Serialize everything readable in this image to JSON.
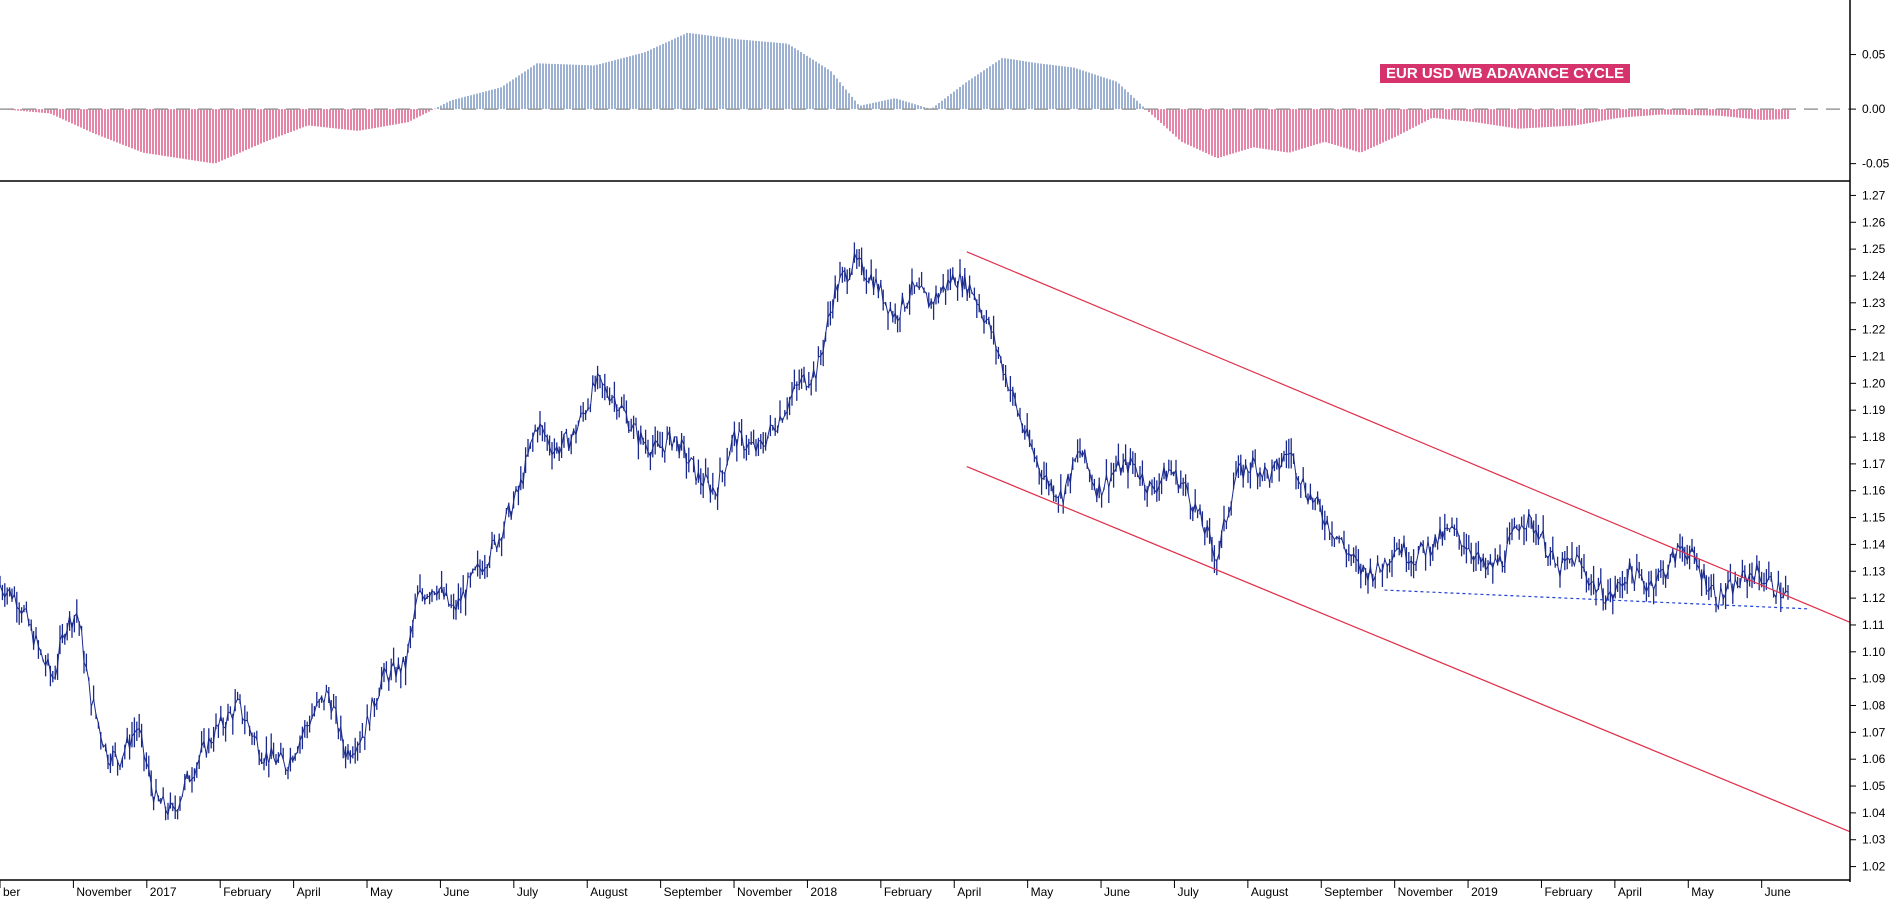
{
  "chart_data": [
    {
      "type": "bar",
      "title": "EUR USD WB ADAVANCE CYCLE",
      "ylim": [
        -0.065,
        0.1
      ],
      "yticks": [
        "0.05",
        "0.00",
        "-0.05"
      ],
      "positive_color": "#5b7fb3",
      "negative_color": "#d6336c",
      "zero_line_color": "#999999",
      "cycle_points": [
        {
          "month": 0,
          "value": 0.0
        },
        {
          "month": 0.7,
          "value": -0.004
        },
        {
          "month": 1.3,
          "value": -0.022
        },
        {
          "month": 2.0,
          "value": -0.04
        },
        {
          "month": 3.0,
          "value": -0.05
        },
        {
          "month": 3.7,
          "value": -0.03
        },
        {
          "month": 4.3,
          "value": -0.015
        },
        {
          "month": 5.0,
          "value": -0.02
        },
        {
          "month": 5.7,
          "value": -0.012
        },
        {
          "month": 6.3,
          "value": 0.008
        },
        {
          "month": 7.0,
          "value": 0.02
        },
        {
          "month": 7.5,
          "value": 0.042
        },
        {
          "month": 8.3,
          "value": 0.04
        },
        {
          "month": 9.0,
          "value": 0.052
        },
        {
          "month": 9.6,
          "value": 0.07
        },
        {
          "month": 10.3,
          "value": 0.064
        },
        {
          "month": 11.0,
          "value": 0.06
        },
        {
          "month": 11.6,
          "value": 0.035
        },
        {
          "month": 12.0,
          "value": 0.003
        },
        {
          "month": 12.5,
          "value": 0.01
        },
        {
          "month": 13.0,
          "value": 0.0
        },
        {
          "month": 13.5,
          "value": 0.025
        },
        {
          "month": 14.0,
          "value": 0.047
        },
        {
          "month": 14.5,
          "value": 0.042
        },
        {
          "month": 15.0,
          "value": 0.038
        },
        {
          "month": 15.6,
          "value": 0.025
        },
        {
          "month": 16.0,
          "value": 0.0
        },
        {
          "month": 16.5,
          "value": -0.03
        },
        {
          "month": 17.0,
          "value": -0.045
        },
        {
          "month": 17.5,
          "value": -0.035
        },
        {
          "month": 18.0,
          "value": -0.04
        },
        {
          "month": 18.5,
          "value": -0.03
        },
        {
          "month": 19.0,
          "value": -0.04
        },
        {
          "month": 19.5,
          "value": -0.025
        },
        {
          "month": 20.0,
          "value": -0.008
        },
        {
          "month": 20.6,
          "value": -0.012
        },
        {
          "month": 21.2,
          "value": -0.018
        },
        {
          "month": 22.0,
          "value": -0.015
        },
        {
          "month": 22.6,
          "value": -0.008
        },
        {
          "month": 23.2,
          "value": -0.005
        },
        {
          "month": 24.0,
          "value": -0.006
        },
        {
          "month": 24.6,
          "value": -0.01
        },
        {
          "month": 25.0,
          "value": -0.009
        }
      ]
    },
    {
      "type": "line",
      "ylim": [
        1.015,
        1.275
      ],
      "yticks": [
        "1.27",
        "1.26",
        "1.25",
        "1.24",
        "1.23",
        "1.22",
        "1.21",
        "1.20",
        "1.19",
        "1.18",
        "1.17",
        "1.16",
        "1.15",
        "1.14",
        "1.13",
        "1.12",
        "1.11",
        "1.10",
        "1.09",
        "1.08",
        "1.07",
        "1.06",
        "1.05",
        "1.04",
        "1.03",
        "1.02"
      ],
      "months": [
        "ber",
        "November",
        "2017",
        "February",
        "April",
        "May",
        "June",
        "July",
        "August",
        "September",
        "November",
        "2018",
        "February",
        "April",
        "May",
        "June",
        "July",
        "August",
        "September",
        "November",
        "2019",
        "February",
        "April",
        "May",
        "June"
      ],
      "series_color": "#1a2a8c",
      "channel_color": "#e0304a",
      "support_color": "#2040d0",
      "price_points": [
        {
          "month": 0.0,
          "value": 1.125
        },
        {
          "month": 0.3,
          "value": 1.12
        },
        {
          "month": 0.7,
          "value": 1.098
        },
        {
          "month": 0.9,
          "value": 1.09
        },
        {
          "month": 1.1,
          "value": 1.11
        },
        {
          "month": 1.3,
          "value": 1.115
        },
        {
          "month": 1.5,
          "value": 1.085
        },
        {
          "month": 1.8,
          "value": 1.062
        },
        {
          "month": 2.0,
          "value": 1.06
        },
        {
          "month": 2.3,
          "value": 1.072
        },
        {
          "month": 2.6,
          "value": 1.045
        },
        {
          "month": 2.9,
          "value": 1.04
        },
        {
          "month": 3.2,
          "value": 1.055
        },
        {
          "month": 3.6,
          "value": 1.07
        },
        {
          "month": 4.0,
          "value": 1.08
        },
        {
          "month": 4.4,
          "value": 1.062
        },
        {
          "month": 4.8,
          "value": 1.058
        },
        {
          "month": 5.2,
          "value": 1.075
        },
        {
          "month": 5.5,
          "value": 1.085
        },
        {
          "month": 5.8,
          "value": 1.062
        },
        {
          "month": 6.1,
          "value": 1.07
        },
        {
          "month": 6.4,
          "value": 1.09
        },
        {
          "month": 6.8,
          "value": 1.095
        },
        {
          "month": 7.0,
          "value": 1.12
        },
        {
          "month": 7.3,
          "value": 1.125
        },
        {
          "month": 7.6,
          "value": 1.115
        },
        {
          "month": 8.0,
          "value": 1.13
        },
        {
          "month": 8.3,
          "value": 1.14
        },
        {
          "month": 8.7,
          "value": 1.16
        },
        {
          "month": 9.0,
          "value": 1.185
        },
        {
          "month": 9.3,
          "value": 1.175
        },
        {
          "month": 9.6,
          "value": 1.18
        },
        {
          "month": 10.0,
          "value": 1.2
        },
        {
          "month": 10.3,
          "value": 1.195
        },
        {
          "month": 10.7,
          "value": 1.18
        },
        {
          "month": 11.0,
          "value": 1.175
        },
        {
          "month": 11.3,
          "value": 1.18
        },
        {
          "month": 11.7,
          "value": 1.165
        },
        {
          "month": 12.0,
          "value": 1.16
        },
        {
          "month": 12.3,
          "value": 1.18
        },
        {
          "month": 12.7,
          "value": 1.175
        },
        {
          "month": 13.0,
          "value": 1.185
        },
        {
          "month": 13.4,
          "value": 1.2
        },
        {
          "month": 13.7,
          "value": 1.205
        },
        {
          "month": 14.0,
          "value": 1.235
        },
        {
          "month": 14.3,
          "value": 1.245
        },
        {
          "month": 14.6,
          "value": 1.24
        },
        {
          "month": 15.0,
          "value": 1.225
        },
        {
          "month": 15.3,
          "value": 1.235
        },
        {
          "month": 15.6,
          "value": 1.23
        },
        {
          "month": 16.0,
          "value": 1.24
        },
        {
          "month": 16.3,
          "value": 1.235
        },
        {
          "month": 16.6,
          "value": 1.22
        },
        {
          "month": 16.9,
          "value": 1.2
        },
        {
          "month": 17.2,
          "value": 1.18
        },
        {
          "month": 17.5,
          "value": 1.165
        },
        {
          "month": 17.8,
          "value": 1.158
        },
        {
          "month": 18.1,
          "value": 1.175
        },
        {
          "month": 18.4,
          "value": 1.16
        },
        {
          "month": 18.7,
          "value": 1.168
        },
        {
          "month": 19.0,
          "value": 1.17
        },
        {
          "month": 19.3,
          "value": 1.16
        },
        {
          "month": 19.6,
          "value": 1.168
        },
        {
          "month": 19.9,
          "value": 1.16
        },
        {
          "month": 20.2,
          "value": 1.145
        },
        {
          "month": 20.4,
          "value": 1.135
        },
        {
          "month": 20.7,
          "value": 1.165
        },
        {
          "month": 21.0,
          "value": 1.17
        },
        {
          "month": 21.3,
          "value": 1.165
        },
        {
          "month": 21.6,
          "value": 1.175
        },
        {
          "month": 21.9,
          "value": 1.16
        },
        {
          "month": 22.2,
          "value": 1.15
        },
        {
          "month": 22.5,
          "value": 1.14
        },
        {
          "month": 22.8,
          "value": 1.13
        },
        {
          "month": 23.1,
          "value": 1.13
        },
        {
          "month": 23.4,
          "value": 1.14
        },
        {
          "month": 23.7,
          "value": 1.135
        },
        {
          "month": 24.0,
          "value": 1.14
        },
        {
          "month": 24.3,
          "value": 1.145
        },
        {
          "month": 24.6,
          "value": 1.14
        },
        {
          "month": 24.9,
          "value": 1.13
        },
        {
          "month": 25.2,
          "value": 1.135
        },
        {
          "month": 25.5,
          "value": 1.15
        },
        {
          "month": 25.8,
          "value": 1.145
        },
        {
          "month": 26.1,
          "value": 1.13
        },
        {
          "month": 26.4,
          "value": 1.135
        },
        {
          "month": 26.7,
          "value": 1.125
        },
        {
          "month": 27.0,
          "value": 1.12
        },
        {
          "month": 27.3,
          "value": 1.13
        },
        {
          "month": 27.6,
          "value": 1.125
        },
        {
          "month": 27.9,
          "value": 1.13
        },
        {
          "month": 28.2,
          "value": 1.14
        },
        {
          "month": 28.5,
          "value": 1.13
        },
        {
          "month": 28.8,
          "value": 1.12
        },
        {
          "month": 29.1,
          "value": 1.125
        },
        {
          "month": 29.4,
          "value": 1.13
        },
        {
          "month": 29.7,
          "value": 1.125
        },
        {
          "month": 30.0,
          "value": 1.12
        }
      ]
    }
  ]
}
